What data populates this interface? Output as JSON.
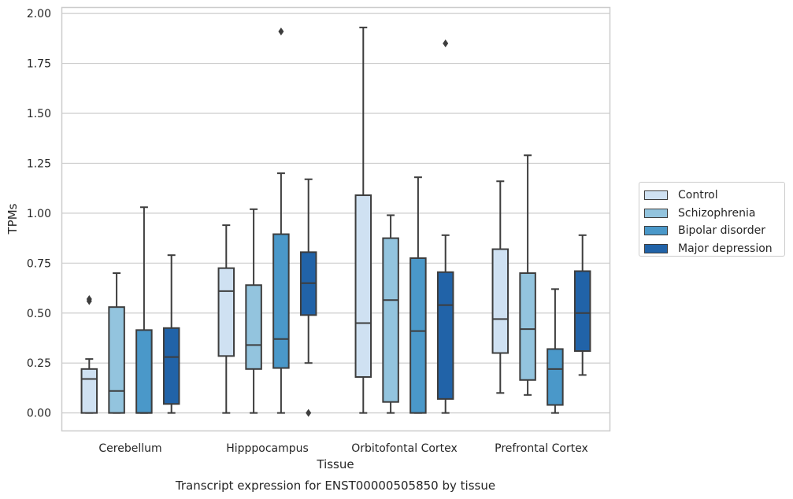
{
  "chart_data": {
    "type": "box",
    "title": "Transcript expression for ENST00000505850 by tissue",
    "xlabel": "Tissue",
    "ylabel": "TPMs",
    "ylim": [
      -0.09,
      2.03
    ],
    "yticks": [
      "0.00",
      "0.25",
      "0.50",
      "0.75",
      "1.00",
      "1.25",
      "1.50",
      "1.75",
      "2.00"
    ],
    "categories": [
      "Cerebellum",
      "Hipppocampus",
      "Orbitofontal Cortex",
      "Prefrontal Cortex"
    ],
    "grid": "horizontal",
    "legend_position": "right",
    "series": [
      {
        "name": "Control",
        "color": "#cfe1f2",
        "boxes": [
          {
            "whislo": 0.0,
            "q1": 0.0,
            "med": 0.17,
            "q3": 0.22,
            "whishi": 0.27,
            "fliers": [
              0.56,
              0.57
            ]
          },
          {
            "whislo": 0.0,
            "q1": 0.285,
            "med": 0.61,
            "q3": 0.725,
            "whishi": 0.94,
            "fliers": []
          },
          {
            "whislo": 0.0,
            "q1": 0.18,
            "med": 0.45,
            "q3": 1.09,
            "whishi": 1.93,
            "fliers": []
          },
          {
            "whislo": 0.1,
            "q1": 0.3,
            "med": 0.47,
            "q3": 0.82,
            "whishi": 1.16,
            "fliers": []
          }
        ]
      },
      {
        "name": "Schizophrenia",
        "color": "#93c4de",
        "boxes": [
          {
            "whislo": 0.0,
            "q1": 0.0,
            "med": 0.11,
            "q3": 0.53,
            "whishi": 0.7,
            "fliers": []
          },
          {
            "whislo": 0.0,
            "q1": 0.22,
            "med": 0.34,
            "q3": 0.64,
            "whishi": 1.02,
            "fliers": []
          },
          {
            "whislo": 0.0,
            "q1": 0.055,
            "med": 0.565,
            "q3": 0.875,
            "whishi": 0.99,
            "fliers": []
          },
          {
            "whislo": 0.09,
            "q1": 0.165,
            "med": 0.42,
            "q3": 0.7,
            "whishi": 1.29,
            "fliers": []
          }
        ]
      },
      {
        "name": "Bipolar disorder",
        "color": "#4a98c9",
        "boxes": [
          {
            "whislo": 0.0,
            "q1": 0.0,
            "med": 0.0,
            "q3": 0.415,
            "whishi": 1.03,
            "fliers": []
          },
          {
            "whislo": 0.0,
            "q1": 0.225,
            "med": 0.37,
            "q3": 0.895,
            "whishi": 1.2,
            "fliers": [
              1.91
            ]
          },
          {
            "whislo": 0.0,
            "q1": 0.0,
            "med": 0.41,
            "q3": 0.775,
            "whishi": 1.18,
            "fliers": []
          },
          {
            "whislo": 0.0,
            "q1": 0.04,
            "med": 0.22,
            "q3": 0.32,
            "whishi": 0.62,
            "fliers": []
          }
        ]
      },
      {
        "name": "Major depression",
        "color": "#2163a8",
        "boxes": [
          {
            "whislo": 0.0,
            "q1": 0.045,
            "med": 0.28,
            "q3": 0.425,
            "whishi": 0.79,
            "fliers": []
          },
          {
            "whislo": 0.25,
            "q1": 0.49,
            "med": 0.65,
            "q3": 0.805,
            "whishi": 1.17,
            "fliers": [
              0.0
            ]
          },
          {
            "whislo": 0.0,
            "q1": 0.07,
            "med": 0.54,
            "q3": 0.705,
            "whishi": 0.89,
            "fliers": [
              1.85
            ]
          },
          {
            "whislo": 0.19,
            "q1": 0.31,
            "med": 0.5,
            "q3": 0.71,
            "whishi": 0.89,
            "fliers": []
          }
        ]
      }
    ]
  }
}
